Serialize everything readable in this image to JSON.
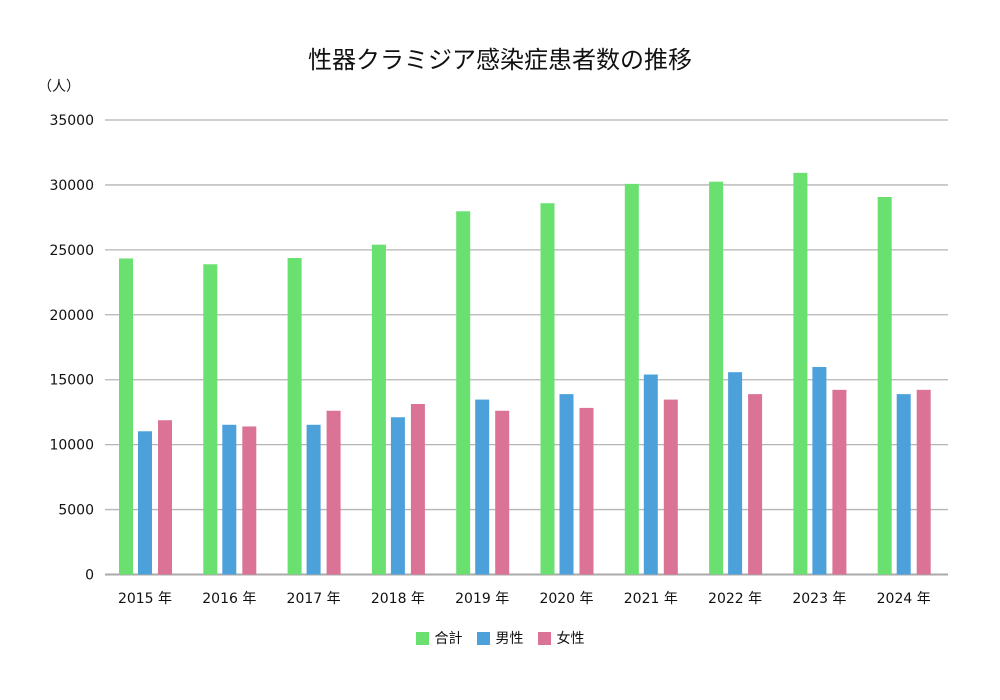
{
  "chart_data": {
    "type": "bar",
    "title": "性器クラミジア感染症患者数の推移",
    "ylabel": "（人）",
    "xlabel": "",
    "ylim": [
      0,
      35000
    ],
    "yticks": [
      "0",
      "5000",
      "10000",
      "15000",
      "20000",
      "25000",
      "30000",
      "35000"
    ],
    "grid": true,
    "legend_position": "bottom",
    "categories": [
      "2015 年",
      "2016 年",
      "2017 年",
      "2018 年",
      "2019 年",
      "2020 年",
      "2021 年",
      "2022 年",
      "2023 年",
      "2024 年"
    ],
    "series": [
      {
        "name": "合計",
        "color": "#69e070",
        "values": [
          24340,
          23890,
          24370,
          25400,
          27970,
          28590,
          30080,
          30250,
          30930,
          29070
        ]
      },
      {
        "name": "男性",
        "color": "#4ca1db",
        "values": [
          11030,
          11530,
          11530,
          12110,
          13470,
          13890,
          15400,
          15580,
          15980,
          13890
        ]
      },
      {
        "name": "女性",
        "color": "#db7396",
        "values": [
          11880,
          11400,
          12610,
          13130,
          12610,
          12830,
          13470,
          13890,
          14220,
          14220
        ]
      }
    ]
  }
}
